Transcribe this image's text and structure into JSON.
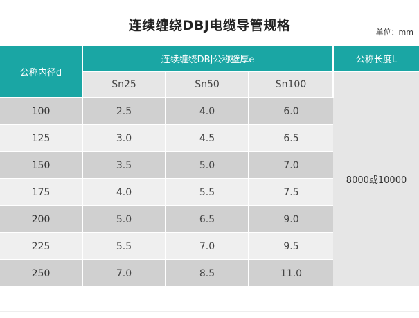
{
  "title": "连续缠绕DBJ电缆导管规格",
  "unit": "单位：mm",
  "table": {
    "header_diameter": "公称内径d",
    "header_wall": "连续缠绕DBJ公称壁厚e",
    "header_length": "公称长度L",
    "sub_headers": [
      "Sn25",
      "Sn50",
      "Sn100"
    ],
    "length_value": "8000或10000",
    "rows": [
      {
        "d": "100",
        "sn25": "2.5",
        "sn50": "4.0",
        "sn100": "6.0"
      },
      {
        "d": "125",
        "sn25": "3.0",
        "sn50": "4.5",
        "sn100": "6.5"
      },
      {
        "d": "150",
        "sn25": "3.5",
        "sn50": "5.0",
        "sn100": "7.0"
      },
      {
        "d": "175",
        "sn25": "4.0",
        "sn50": "5.5",
        "sn100": "7.5"
      },
      {
        "d": "200",
        "sn25": "5.0",
        "sn50": "6.5",
        "sn100": "9.0"
      },
      {
        "d": "225",
        "sn25": "5.5",
        "sn50": "7.0",
        "sn100": "9.5"
      },
      {
        "d": "250",
        "sn25": "7.0",
        "sn50": "8.5",
        "sn100": "11.0"
      }
    ]
  },
  "colors": {
    "header_teal": "#1aa6a4",
    "row_dark": "#d0d0d0",
    "row_light": "#efefef"
  }
}
